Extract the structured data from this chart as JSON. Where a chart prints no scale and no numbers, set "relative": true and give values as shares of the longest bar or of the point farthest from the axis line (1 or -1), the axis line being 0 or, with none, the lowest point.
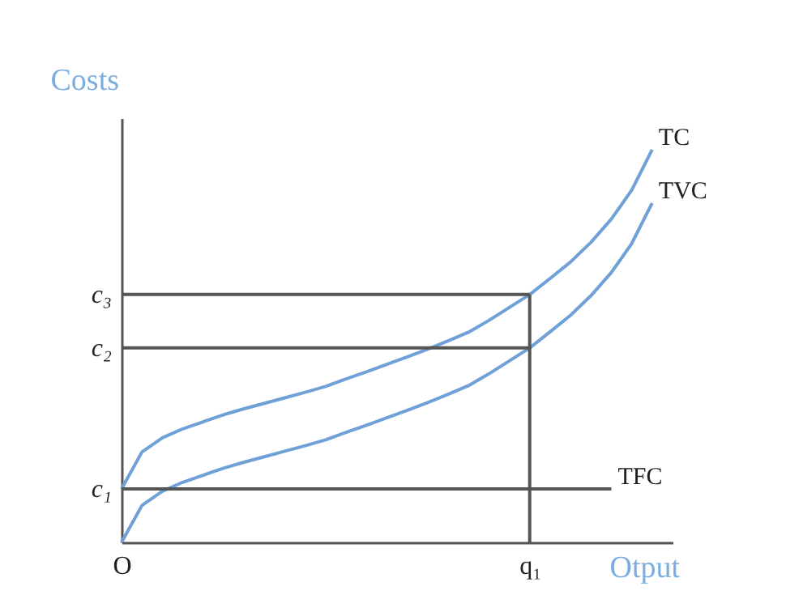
{
  "chart_data": {
    "type": "line",
    "relative": true,
    "xlabel": "Otput",
    "ylabel": "Costs",
    "grid": false,
    "marker": "none",
    "line_style": "solid",
    "categories": [
      "O",
      null,
      null,
      null,
      null,
      null,
      null,
      null,
      null,
      null,
      null,
      null,
      null,
      null,
      null,
      null,
      null,
      null,
      null,
      null,
      "q₁",
      null,
      null,
      null,
      null,
      null,
      null,
      null
    ],
    "annotations": [
      "c₁"
    ],
    "ref_lines": [
      {
        "axis": "x",
        "value": "q₁",
        "color": "#555555"
      }
    ],
    "series": [
      {
        "name": "TC",
        "color": "#6fa0d8",
        "values": [
          0.136,
          0.23,
          0.266,
          0.289,
          0.307,
          0.325,
          0.34,
          0.354,
          0.368,
          0.382,
          0.397,
          0.416,
          0.434,
          0.453,
          0.472,
          0.492,
          0.513,
          0.535,
          0.565,
          0.598,
          0.631,
          0.672,
          0.714,
          0.764,
          0.823,
          0.897,
          1,
          null
        ]
      },
      {
        "name": "TVC",
        "color": "#6fa0d8",
        "values": [
          0,
          0.094,
          0.13,
          0.153,
          0.171,
          0.189,
          0.204,
          0.218,
          0.232,
          0.246,
          0.261,
          0.28,
          0.298,
          0.317,
          0.336,
          0.356,
          0.377,
          0.399,
          0.429,
          0.462,
          0.495,
          0.536,
          0.578,
          0.628,
          0.687,
          0.761,
          0.864,
          null
        ]
      },
      {
        "name": "TFC",
        "color": "#555555",
        "values": [
          0.136,
          0.136,
          0.136,
          0.136,
          0.136,
          0.136,
          0.136,
          0.136,
          0.136,
          0.136,
          0.136,
          0.136,
          0.136,
          0.136,
          0.136,
          0.136,
          0.136,
          0.136,
          0.136,
          0.136,
          0.136,
          0.136,
          0.136,
          0.136,
          0.136,
          null,
          null,
          null
        ]
      },
      {
        "name": "c₃",
        "color": "#555555",
        "values": [
          0.631,
          0.631,
          0.631,
          0.631,
          0.631,
          0.631,
          0.631,
          0.631,
          0.631,
          0.631,
          0.631,
          0.631,
          0.631,
          0.631,
          0.631,
          0.631,
          0.631,
          0.631,
          0.631,
          0.631,
          0.631,
          null,
          null,
          null,
          null,
          null,
          null,
          null
        ]
      },
      {
        "name": "c₂",
        "color": "#555555",
        "values": [
          0.495,
          0.495,
          0.495,
          0.495,
          0.495,
          0.495,
          0.495,
          0.495,
          0.495,
          0.495,
          0.495,
          0.495,
          0.495,
          0.495,
          0.495,
          0.495,
          0.495,
          0.495,
          0.495,
          0.495,
          0.495,
          null,
          null,
          null,
          null,
          null,
          null,
          null
        ]
      }
    ]
  }
}
